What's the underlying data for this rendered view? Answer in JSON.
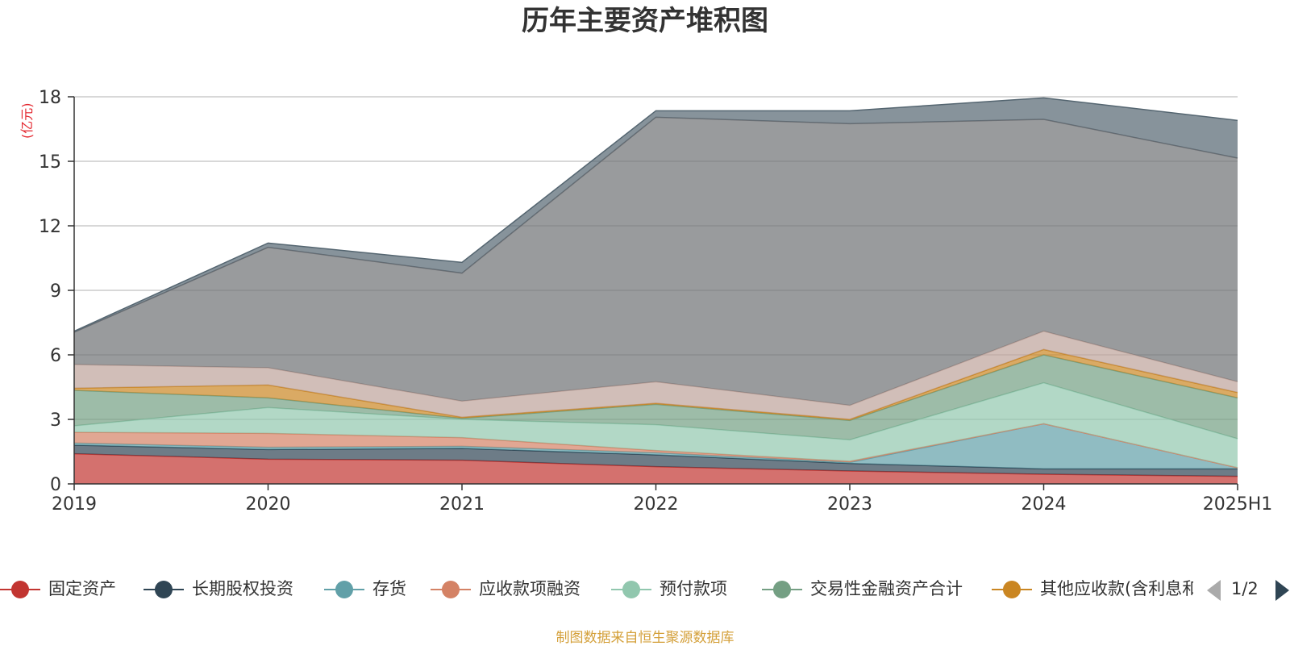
{
  "title": "历年主要资产堆积图",
  "unit_label": "(亿元)",
  "footer": "制图数据来自恒生聚源数据库",
  "legend_pager": "1/2",
  "chart_data": {
    "type": "area",
    "stacked": true,
    "categories": [
      "2019",
      "2020",
      "2021",
      "2022",
      "2023",
      "2024",
      "2025H1"
    ],
    "ylim": [
      0,
      18
    ],
    "yticks": [
      0,
      3,
      6,
      9,
      12,
      15,
      18
    ],
    "grid": true,
    "legend_position": "bottom",
    "series": [
      {
        "name": "固定资产",
        "color": "#c23531",
        "values": [
          1.4,
          1.15,
          1.1,
          0.8,
          0.6,
          0.45,
          0.35
        ]
      },
      {
        "name": "长期股权投资",
        "color": "#2f4554",
        "values": [
          0.4,
          0.45,
          0.55,
          0.55,
          0.35,
          0.25,
          0.35
        ]
      },
      {
        "name": "存货",
        "color": "#61a0a8",
        "values": [
          0.1,
          0.1,
          0.1,
          0.1,
          0.05,
          2.1,
          0.05
        ]
      },
      {
        "name": "应收款项融资",
        "color": "#d48265",
        "values": [
          0.5,
          0.65,
          0.4,
          0.1,
          0.05,
          0.0,
          0.0
        ]
      },
      {
        "name": "预付款项",
        "color": "#91c7ae",
        "values": [
          0.3,
          1.2,
          0.85,
          1.2,
          1.0,
          1.9,
          1.35
        ]
      },
      {
        "name": "交易性金融资产合计",
        "color": "#749f83",
        "values": [
          1.65,
          0.45,
          0.05,
          0.95,
          0.9,
          1.3,
          1.9
        ]
      },
      {
        "name": "其他应收款(含利息和股利)",
        "color": "#ca8622",
        "values": [
          0.1,
          0.6,
          0.05,
          0.05,
          0.05,
          0.25,
          0.25
        ]
      },
      {
        "name": "",
        "color": "#bda29a",
        "values": [
          1.1,
          0.8,
          0.75,
          1.0,
          0.65,
          0.85,
          0.5
        ]
      },
      {
        "name": "",
        "color": "#6e7074",
        "values": [
          1.5,
          5.6,
          5.95,
          12.3,
          13.1,
          9.85,
          10.4
        ]
      },
      {
        "name": "",
        "color": "#546570",
        "values": [
          0.05,
          0.2,
          0.5,
          0.3,
          0.6,
          1.0,
          1.75
        ]
      }
    ]
  }
}
